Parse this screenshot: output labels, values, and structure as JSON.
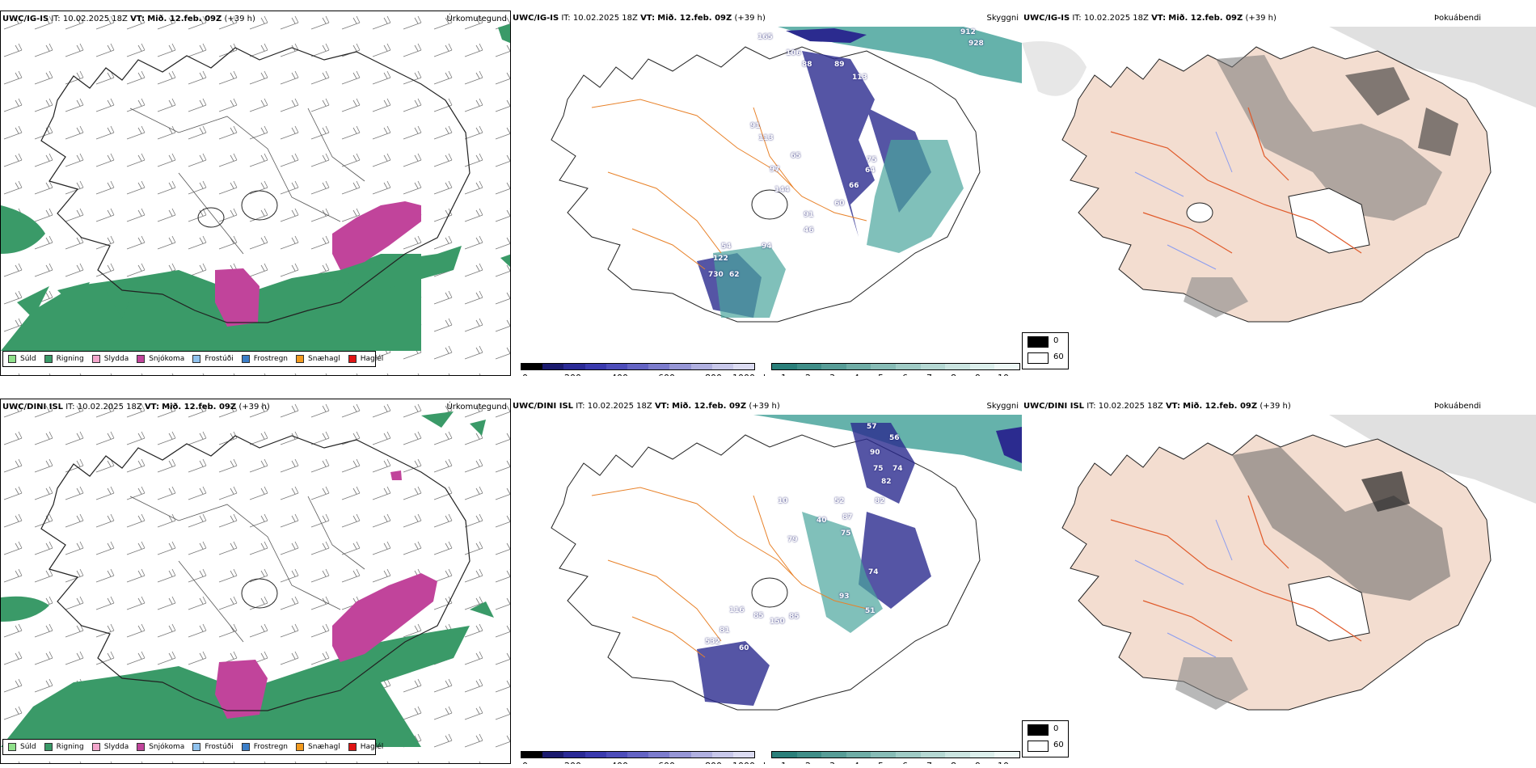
{
  "rows": [
    {
      "model": "UWC/IG-IS",
      "it_label": "IT:",
      "it_value": "10.02.2025 18Z",
      "vt_label": "VT:",
      "vt_value": "Mið. 12.feb. 09Z",
      "lead": "(+39 h)",
      "panels": {
        "precip_type": "Úrkomutegund",
        "visibility": "Skyggni",
        "fog": "Þokuábendi"
      },
      "visibility_values": [
        "165",
        "106",
        "88",
        "89",
        "113",
        "91",
        "113",
        "65",
        "97",
        "75",
        "64",
        "144",
        "66",
        "60",
        "91",
        "46",
        "54",
        "94",
        "122",
        "62",
        "730",
        "912",
        "928"
      ]
    },
    {
      "model": "UWC/DINI ISL",
      "it_label": "IT:",
      "it_value": "10.02.2025 18Z",
      "vt_label": "VT:",
      "vt_value": "Mið. 12.feb. 09Z",
      "lead": "(+39 h)",
      "panels": {
        "precip_type": "Úrkomutegund",
        "visibility": "Skyggni",
        "fog": "Þokuábendi"
      },
      "visibility_values": [
        "57",
        "56",
        "90",
        "75",
        "74",
        "82",
        "82",
        "10",
        "52",
        "87",
        "75",
        "79",
        "40",
        "74",
        "93",
        "51",
        "116",
        "85",
        "150",
        "85",
        "81",
        "60",
        "532"
      ]
    }
  ],
  "precip_legend": [
    {
      "label": "Súld",
      "color": "#8fe08a"
    },
    {
      "label": "Rigning",
      "color": "#3a9a68"
    },
    {
      "label": "Slydda",
      "color": "#f4a6cc"
    },
    {
      "label": "Snjókoma",
      "color": "#c1449b"
    },
    {
      "label": "Frostúði",
      "color": "#8fc2ee"
    },
    {
      "label": "Frostregn",
      "color": "#3b7ec8"
    },
    {
      "label": "Snæhagl",
      "color": "#f29a1e"
    },
    {
      "label": "Haglél",
      "color": "#e01414"
    }
  ],
  "height_bar": {
    "unit": "m",
    "ticks": [
      "0",
      "200",
      "400",
      "600",
      "800",
      "1000"
    ],
    "colors": [
      "#000000",
      "#1a1a6e",
      "#2a2a96",
      "#3a3aae",
      "#4d4dba",
      "#6464c4",
      "#7c7ccd",
      "#9696d6",
      "#b0b0e0",
      "#c8c8ea",
      "#dcdcf2"
    ]
  },
  "km_bar": {
    "unit": "km",
    "ticks": [
      "1",
      "2",
      "3",
      "4",
      "5",
      "6",
      "7",
      "8",
      "9",
      "10"
    ],
    "colors": [
      "#2a7f7a",
      "#3f8e88",
      "#579d97",
      "#6fada6",
      "#87bcb6",
      "#9fcbc5",
      "#b5d8d3",
      "#cae4e0",
      "#dcefec",
      "#eef8f6"
    ]
  },
  "fog_legend": [
    {
      "label": "0",
      "color": "#000000"
    },
    {
      "label": "60",
      "color": "#ffffff"
    }
  ],
  "colors": {
    "rain": "#3a9a68",
    "snow": "#c1449b",
    "vis_dark": "#2b2b8f",
    "vis_teal": "#4aa59c",
    "road": "#e8822a",
    "land_fog": "#f3ddd0",
    "river": "#8b9cf0"
  }
}
